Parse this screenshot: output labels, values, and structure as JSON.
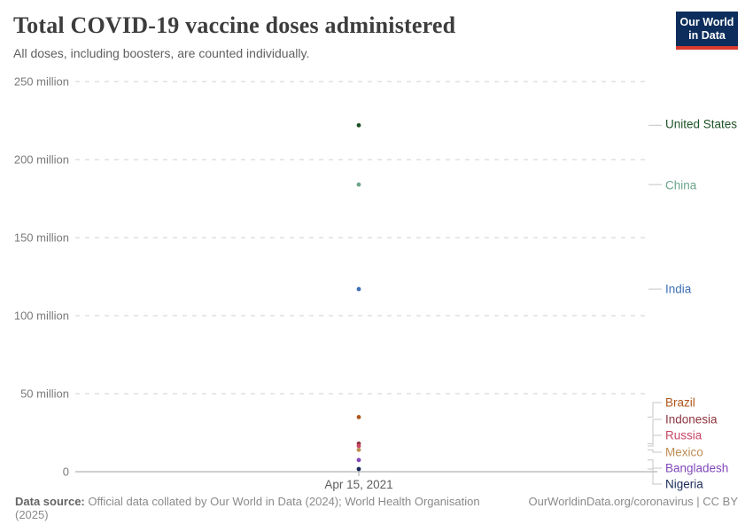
{
  "header": {
    "title": "Total COVID-19 vaccine doses administered",
    "subtitle": "All doses, including boosters, are counted individually.",
    "logo": {
      "line1": "Our World",
      "line2": "in Data",
      "bg_color": "#0d2e5c",
      "accent_color": "#dc3a2e"
    }
  },
  "chart_data": {
    "type": "scatter",
    "title": "Total COVID-19 vaccine doses administered",
    "subtitle": "All doses, including boosters, are counted individually.",
    "x_tick_label": "Apr 15, 2021",
    "xlabel": "",
    "ylabel": "",
    "ylim": [
      0,
      250000000
    ],
    "grid": "horizontal-dashed",
    "legend_position": "right-inline-colored-labels",
    "yticks": [
      {
        "value": 0,
        "label": "0"
      },
      {
        "value": 50000000,
        "label": "50 million"
      },
      {
        "value": 100000000,
        "label": "100 million"
      },
      {
        "value": 150000000,
        "label": "150 million"
      },
      {
        "value": 200000000,
        "label": "200 million"
      },
      {
        "value": 250000000,
        "label": "250 million"
      }
    ],
    "series": [
      {
        "name": "United States",
        "value": 222000000,
        "color": "#1e5226"
      },
      {
        "name": "China",
        "value": 184000000,
        "color": "#6ba48a"
      },
      {
        "name": "India",
        "value": 117000000,
        "color": "#3d6fb5"
      },
      {
        "name": "Brazil",
        "value": 35000000,
        "color": "#b0561b"
      },
      {
        "name": "Indonesia",
        "value": 18000000,
        "color": "#8c353f"
      },
      {
        "name": "Russia",
        "value": 16500000,
        "color": "#c94767"
      },
      {
        "name": "Mexico",
        "value": 14000000,
        "color": "#bf8e54"
      },
      {
        "name": "Bangladesh",
        "value": 7500000,
        "color": "#8148ba"
      },
      {
        "name": "Nigeria",
        "value": 1700000,
        "color": "#1a2c59"
      }
    ]
  },
  "footer": {
    "source_label": "Data source:",
    "source_text": " Official data collated by Our World in Data (2024); World Health Organisation (2025)",
    "link": "OurWorldinData.org/coronavirus | CC BY"
  }
}
